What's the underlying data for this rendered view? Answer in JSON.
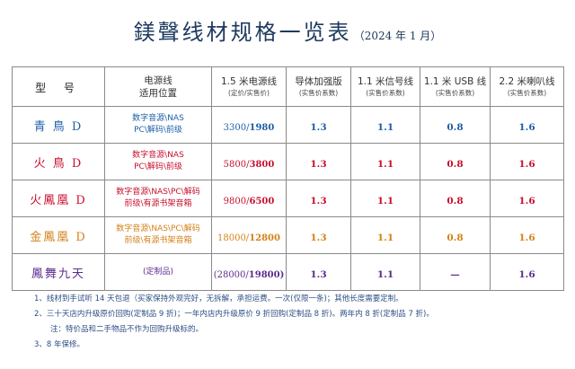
{
  "title": "鎂聲线材规格一览表",
  "subtitle": "（2024 年 1 月）",
  "colors": {
    "title": "#1f3a60",
    "blue": "#1e5fa8",
    "red": "#c8102e",
    "orange": "#d4821a",
    "purple": "#5b2d8e",
    "notes": "#2d4f86"
  },
  "headers": {
    "model": "型 号",
    "usage_main": "电源线",
    "usage_sub": "适用位置",
    "power_main": "1.5 米电源线",
    "power_sub": "(定价/实售价)",
    "ground_main": "导体加强版",
    "ground_sub": "(实售价系数)",
    "signal_main": "1.1 米信号线",
    "signal_sub": "(实售价系数)",
    "usb_main": "1.1 米 USB 线",
    "usb_sub": "(实售价系数)",
    "speaker_main": "2.2 米喇叭线",
    "speaker_sub": "(实售价系数)"
  },
  "rows": [
    {
      "model": "青 鳥 D",
      "usage_line1": "数字音源\\NAS",
      "usage_line2": "PC\\解码\\前级",
      "price_list": "3300/",
      "price_sale": "1980",
      "ground": "1.3",
      "signal": "1.1",
      "usb": "0.8",
      "speaker": "1.6"
    },
    {
      "model": "火 鳥 D",
      "usage_line1": "数字音源\\NAS",
      "usage_line2": "PC\\解码\\前级",
      "price_list": "5800/",
      "price_sale": "3800",
      "ground": "1.3",
      "signal": "1.1",
      "usb": "0.8",
      "speaker": "1.6"
    },
    {
      "model": "火鳳凰 D",
      "usage_line1": "数字音源\\NAS\\PC\\解码",
      "usage_line2": "前级\\有源书架音箱",
      "price_list": "9800/",
      "price_sale": "6500",
      "ground": "1.3",
      "signal": "1.1",
      "usb": "0.8",
      "speaker": "1.6"
    },
    {
      "model": "金鳳凰 D",
      "usage_line1": "数字音源\\NAS\\PC\\解码",
      "usage_line2": "前级\\有源书架音箱",
      "price_list": "18000/",
      "price_sale": "12800",
      "ground": "1.3",
      "signal": "1.1",
      "usb": "0.8",
      "speaker": "1.6"
    },
    {
      "model": "鳳舞九天",
      "usage_line1": "(定制品)",
      "usage_line2": "",
      "price_list": "(28000/",
      "price_sale": "19800)",
      "ground": "1.3",
      "signal": "1.1",
      "usb": "—",
      "speaker": "1.6"
    }
  ],
  "notes": [
    "1、线材到手试听 14 天包退（买家保持外观完好，无拆解，承担运费。一次(仅限一条)；其他长度需要定制。",
    "2、三十天店内升级原价回购(定制品 9 折)；一年内店内升级原价 9 折回购(定制品 8 折)。两年内 8 折(定制品 7 折)。",
    "注：特价品和二手物品不作为回购升级标的。",
    "3、8 年保修。"
  ]
}
